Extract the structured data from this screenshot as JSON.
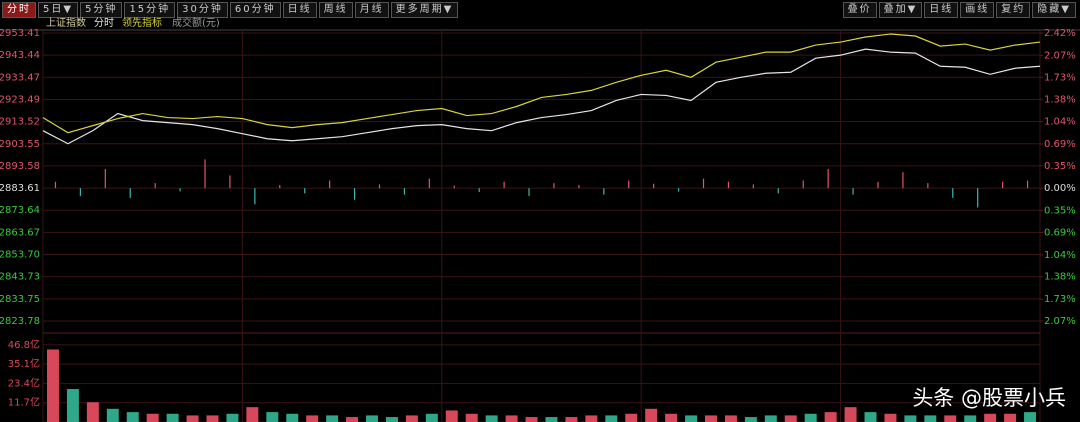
{
  "toolbar": {
    "left": [
      "分时",
      "5日▼",
      "5分钟",
      "15分钟",
      "30分钟",
      "60分钟",
      "日线",
      "周线",
      "月线",
      "更多周期▼"
    ],
    "right": [
      "叠价",
      "叠加▼",
      "日线",
      "画线",
      "复约",
      "隐藏▼"
    ]
  },
  "watermark": "头条 @股票小兵",
  "chart_data": [
    {
      "type": "line",
      "title": "上证指数",
      "series": [
        {
          "name": "分时",
          "color": "#e6e6e6",
          "values": [
            2909.45,
            2903.56,
            2909.45,
            2917.15,
            2913.98,
            2913.08,
            2912.17,
            2910.36,
            2908.09,
            2905.82,
            2904.92,
            2905.82,
            2906.73,
            2908.54,
            2910.36,
            2911.72,
            2912.17,
            2910.36,
            2909.45,
            2913.08,
            2915.34,
            2916.7,
            2918.51,
            2923.05,
            2925.76,
            2925.31,
            2923.05,
            2931.2,
            2933.47,
            2935.28,
            2935.74,
            2942.08,
            2943.44,
            2946.16,
            2944.8,
            2944.35,
            2938.45,
            2938.0,
            2934.83,
            2937.55,
            2938.45
          ]
        },
        {
          "name": "领先指标",
          "color": "#d8d43a",
          "values": [
            2915.34,
            2908.54,
            2911.72,
            2914.89,
            2917.15,
            2915.34,
            2914.89,
            2915.79,
            2914.89,
            2912.17,
            2910.81,
            2912.17,
            2913.08,
            2914.89,
            2916.7,
            2918.51,
            2919.42,
            2916.25,
            2917.15,
            2920.33,
            2924.41,
            2925.76,
            2927.58,
            2931.2,
            2934.38,
            2936.64,
            2933.47,
            2940.27,
            2942.53,
            2944.8,
            2944.8,
            2947.97,
            2949.33,
            2951.6,
            2952.96,
            2952.05,
            2947.52,
            2948.42,
            2945.71,
            2947.97,
            2949.33
          ]
        }
      ],
      "strength_bars": {
        "axis": "y2",
        "up_color": "#e0556a",
        "down_color": "#3cb8b0",
        "values": [
          0.1,
          -0.12,
          0.3,
          -0.15,
          0.08,
          -0.05,
          0.45,
          0.2,
          -0.25,
          0.05,
          -0.08,
          0.12,
          -0.18,
          0.06,
          -0.1,
          0.15,
          0.04,
          -0.06,
          0.1,
          -0.12,
          0.08,
          0.05,
          -0.1,
          0.12,
          0.07,
          -0.05,
          0.15,
          0.1,
          0.06,
          -0.08,
          0.12,
          0.3,
          -0.1,
          0.1,
          0.25,
          0.08,
          -0.15,
          -0.3,
          0.1,
          0.12
        ]
      },
      "ylim": [
        2823.78,
        2953.41
      ],
      "yticks": [
        2953.41,
        2943.44,
        2933.47,
        2923.49,
        2913.52,
        2903.55,
        2893.58,
        2883.61,
        2873.64,
        2863.67,
        {
          "value": 2853.7,
          "label": "2853.70"
        },
        2843.73,
        2833.75,
        2823.78
      ],
      "y2lim": [
        -2.07,
        2.42
      ],
      "y2ticks": [
        {
          "value": 2.42,
          "label": "2.42%"
        },
        {
          "value": 2.07,
          "label": "2.07%"
        },
        {
          "value": 1.73,
          "label": "1.73%"
        },
        {
          "value": 1.38,
          "label": "1.38%"
        },
        {
          "value": 1.04,
          "label": "1.04%"
        },
        {
          "value": 0.69,
          "label": "0.69%"
        },
        {
          "value": 0.35,
          "label": "0.35%"
        },
        {
          "value": 0,
          "label": "0.00%"
        },
        {
          "value": -0.35,
          "label": "0.35%"
        },
        {
          "value": -0.69,
          "label": "0.69%"
        },
        {
          "value": -1.04,
          "label": "1.04%"
        },
        {
          "value": -1.38,
          "label": "1.38%"
        },
        {
          "value": -1.73,
          "label": "1.73%"
        },
        {
          "value": -2.07,
          "label": "2.07%"
        }
      ],
      "up_color": "#e0556a",
      "down_color": "#3cc83c",
      "flat_color": "#dddddd",
      "grid": true
    },
    {
      "type": "bar",
      "title": "成交额(元)",
      "values": [
        44,
        20,
        12,
        8,
        6,
        5,
        5,
        4,
        4,
        5,
        9,
        6,
        5,
        4,
        4,
        3,
        4,
        3,
        4,
        5,
        7,
        5,
        4,
        4,
        3,
        3,
        3,
        4,
        4,
        5,
        8,
        5,
        4,
        4,
        4,
        3,
        4,
        4,
        5,
        6,
        9,
        6,
        5,
        4,
        4,
        4,
        4,
        5,
        5,
        6
      ],
      "colors": [
        "#d9485a",
        "#2fa88a",
        "#d9485a",
        "#2fa88a",
        "#2fa88a",
        "#d9485a",
        "#2fa88a",
        "#d9485a",
        "#d9485a",
        "#2fa88a",
        "#d9485a",
        "#2fa88a",
        "#2fa88a",
        "#d9485a",
        "#2fa88a",
        "#d9485a",
        "#2fa88a",
        "#2fa88a",
        "#d9485a",
        "#2fa88a",
        "#d9485a",
        "#d9485a",
        "#2fa88a",
        "#d9485a",
        "#d9485a",
        "#2fa88a",
        "#d9485a",
        "#d9485a",
        "#2fa88a",
        "#d9485a",
        "#d9485a",
        "#d9485a",
        "#2fa88a",
        "#d9485a",
        "#d9485a",
        "#2fa88a",
        "#2fa88a",
        "#d9485a",
        "#2fa88a",
        "#d9485a",
        "#d9485a",
        "#2fa88a",
        "#d9485a",
        "#2fa88a",
        "#2fa88a",
        "#d9485a",
        "#2fa88a",
        "#d9485a",
        "#d9485a",
        "#2fa88a"
      ],
      "ylim": [
        0,
        54
      ],
      "yticks": [
        {
          "value": 46.8,
          "label": "46.8亿"
        },
        {
          "value": 35.1,
          "label": "35.1亿"
        },
        {
          "value": 23.4,
          "label": "23.4亿"
        },
        {
          "value": 11.7,
          "label": "11.7亿"
        }
      ],
      "tick_color": "#d9485a",
      "grid": true
    }
  ]
}
